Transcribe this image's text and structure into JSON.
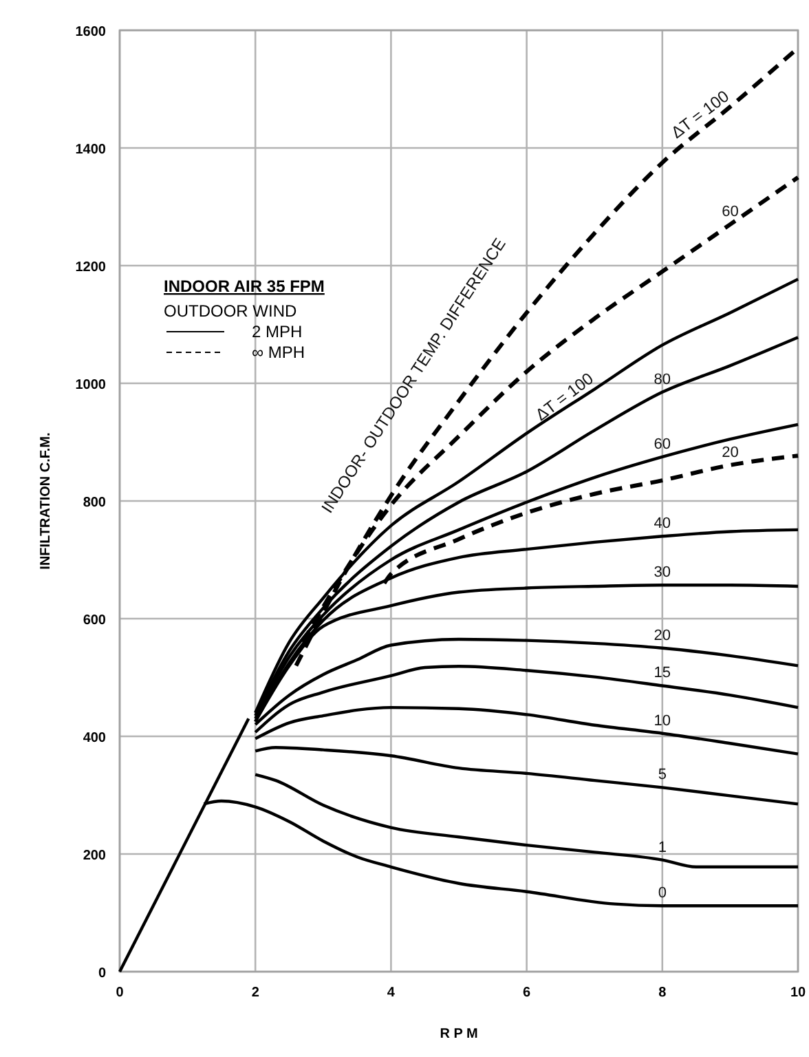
{
  "chart_data": {
    "type": "line",
    "xlabel": "R P M",
    "ylabel": "INFILTRATION C.F.M.",
    "xlim": [
      0,
      10
    ],
    "ylim": [
      0,
      1600
    ],
    "xticks": [
      0,
      2,
      4,
      6,
      8,
      10
    ],
    "yticks": [
      0,
      200,
      400,
      600,
      800,
      1000,
      1200,
      1400,
      1600
    ],
    "grid": true,
    "legend_title": "INDOOR AIR 35 FPM",
    "series": [
      {
        "color": "#000000",
        "line_style": "solid",
        "x": [
          0,
          1.9
        ],
        "values": [
          0,
          430
        ]
      },
      {
        "color": "#000000",
        "line_style": "solid",
        "x": [
          1.24,
          1.5,
          2,
          2.5,
          3,
          3.5,
          4,
          5,
          6,
          7.3,
          8,
          10
        ],
        "values": [
          285,
          290,
          280,
          255,
          222,
          195,
          178,
          150,
          136,
          115,
          112,
          112
        ]
      },
      {
        "color": "#000000",
        "line_style": "solid",
        "x": [
          2,
          2.3,
          3,
          4,
          5,
          6,
          7,
          8,
          8.5,
          10
        ],
        "values": [
          335,
          325,
          283,
          245,
          229,
          215,
          203,
          190,
          178,
          178
        ]
      },
      {
        "color": "#000000",
        "line_style": "solid",
        "x": [
          2,
          2.3,
          3,
          4,
          5,
          6,
          7,
          8,
          9,
          10
        ],
        "values": [
          375,
          381,
          377,
          367,
          346,
          337,
          325,
          313,
          299,
          285
        ]
      },
      {
        "color": "#000000",
        "line_style": "solid",
        "x": [
          2,
          2.5,
          3,
          4,
          5,
          6,
          7,
          8,
          9,
          10
        ],
        "values": [
          396,
          423,
          435,
          449,
          447,
          437,
          419,
          405,
          388,
          370
        ]
      },
      {
        "color": "#000000",
        "line_style": "solid",
        "x": [
          2,
          2.5,
          3,
          4,
          4.5,
          5,
          6,
          7,
          8,
          9,
          10
        ],
        "values": [
          407,
          454,
          475,
          503,
          517,
          519,
          512,
          501,
          486,
          470,
          449
        ]
      },
      {
        "color": "#000000",
        "line_style": "solid",
        "x": [
          2,
          2.5,
          3,
          3.5,
          4,
          5,
          6,
          7,
          8,
          9,
          10
        ],
        "values": [
          420,
          470,
          505,
          530,
          555,
          565,
          563,
          558,
          550,
          537,
          520
        ]
      },
      {
        "color": "#000000",
        "line_style": "solid",
        "x": [
          2,
          2.5,
          3,
          4,
          5,
          6,
          7,
          8,
          9,
          10
        ],
        "values": [
          425,
          520,
          587,
          622,
          645,
          652,
          655,
          657,
          657,
          655
        ]
      },
      {
        "color": "#000000",
        "line_style": "solid",
        "x": [
          2,
          2.5,
          3,
          4,
          5,
          6,
          7,
          8,
          9,
          10
        ],
        "values": [
          425,
          525,
          597,
          669,
          704,
          718,
          730,
          740,
          748,
          751
        ]
      },
      {
        "color": "#000000",
        "line_style": "solid",
        "x": [
          2,
          2.5,
          3,
          4,
          5,
          6,
          7,
          8,
          9,
          10
        ],
        "values": [
          430,
          535,
          606,
          700,
          751,
          798,
          840,
          875,
          905,
          930
        ]
      },
      {
        "color": "#000000",
        "line_style": "solid",
        "x": [
          2,
          2.5,
          3,
          4,
          5,
          6,
          7,
          8,
          9,
          10
        ],
        "values": [
          435,
          545,
          618,
          723,
          798,
          850,
          920,
          985,
          1030,
          1078
        ]
      },
      {
        "color": "#000000",
        "line_style": "solid",
        "x": [
          2,
          2.5,
          3,
          4,
          5,
          6,
          7,
          8,
          9,
          10
        ],
        "values": [
          440,
          560,
          635,
          758,
          833,
          915,
          990,
          1065,
          1120,
          1177
        ]
      },
      {
        "color": "#000000",
        "line_style": "dashed",
        "x": [
          3.9,
          4,
          5,
          6,
          7,
          8,
          9,
          10
        ],
        "values": [
          660,
          676,
          735,
          780,
          812,
          835,
          861,
          877
        ]
      },
      {
        "color": "#000000",
        "line_style": "dashed",
        "x": [
          2.7,
          3,
          4,
          5,
          6,
          7,
          8,
          9,
          10
        ],
        "values": [
          560,
          620,
          793,
          910,
          1020,
          1110,
          1190,
          1270,
          1350
        ]
      },
      {
        "color": "#000000",
        "line_style": "dashed",
        "x": [
          2.6,
          3,
          4,
          5,
          6,
          7,
          8,
          9,
          10
        ],
        "values": [
          520,
          610,
          809,
          970,
          1120,
          1255,
          1375,
          1470,
          1570
        ]
      }
    ],
    "annotations": [
      "INDOOR- OUTDOOR TEMP. DIFFERENCE",
      {
        "text": "ΔT = 100",
        "x": 9,
        "y": 1470
      },
      {
        "text": "60",
        "x": 9,
        "y": 1270
      },
      {
        "text": "ΔT = 100",
        "x": 7,
        "y": 990
      },
      {
        "text": "80",
        "x": 8,
        "y": 985
      },
      {
        "text": "60",
        "x": 8,
        "y": 875
      },
      {
        "text": "20",
        "x": 9,
        "y": 861
      },
      {
        "text": "40",
        "x": 8,
        "y": 740
      },
      {
        "text": "30",
        "x": 8,
        "y": 657
      },
      {
        "text": "20",
        "x": 8,
        "y": 550
      },
      {
        "text": "15",
        "x": 8,
        "y": 486
      },
      {
        "text": "10",
        "x": 8,
        "y": 405
      },
      {
        "text": "5",
        "x": 8,
        "y": 313
      },
      {
        "text": "1",
        "x": 8,
        "y": 190
      },
      {
        "text": "0",
        "x": 8,
        "y": 112
      },
      "OUTDOOR WIND",
      "2 MPH",
      "∞ MPH"
    ]
  }
}
